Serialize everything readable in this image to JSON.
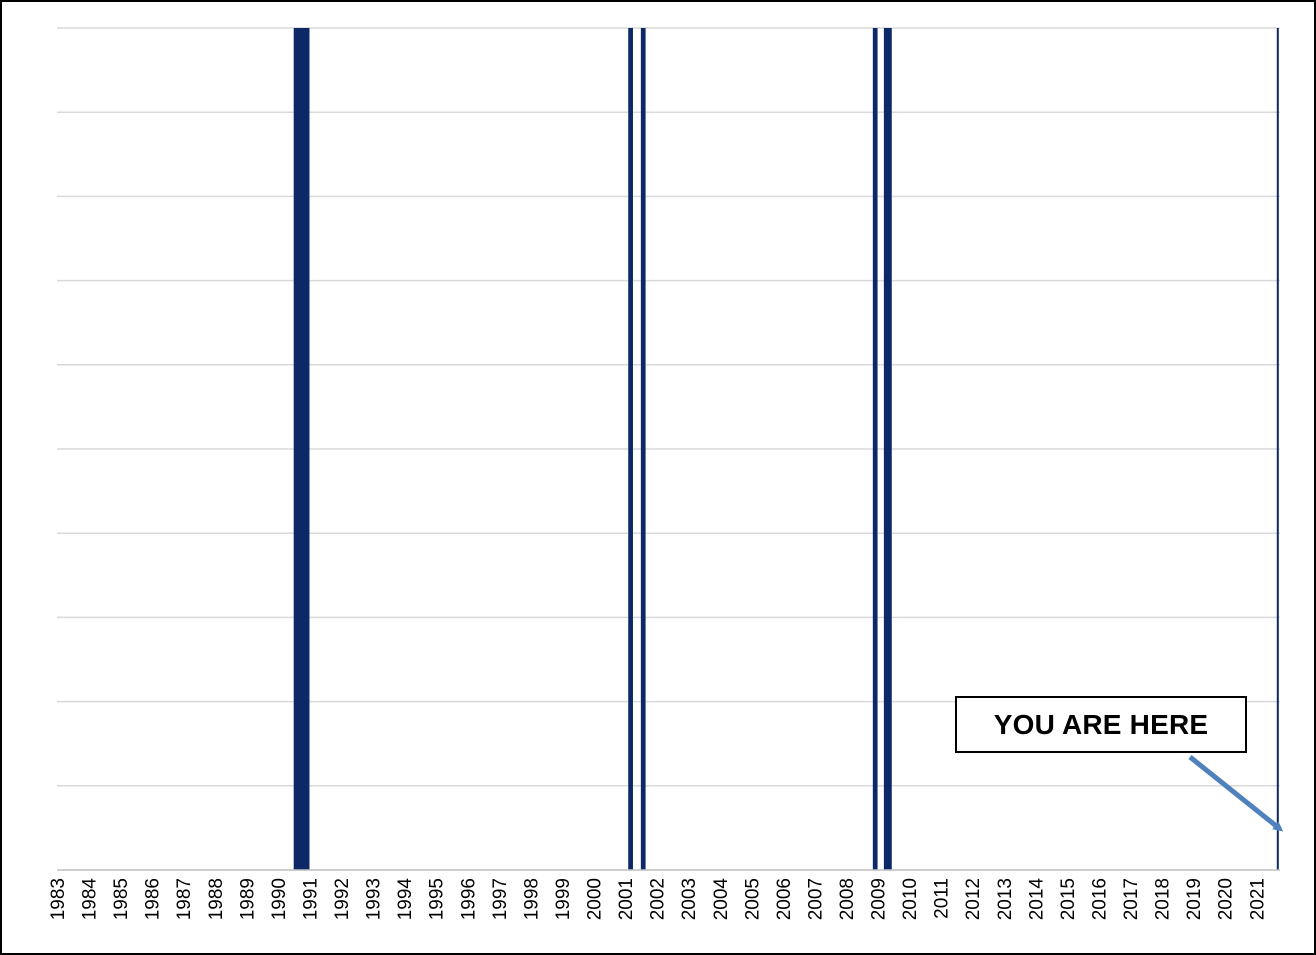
{
  "chart_data": {
    "type": "bar",
    "title": "",
    "xlabel": "",
    "ylabel": "",
    "x_tick_labels": [
      "1983",
      "1984",
      "1985",
      "1986",
      "1987",
      "1988",
      "1989",
      "1990",
      "1991",
      "1992",
      "1993",
      "1994",
      "1995",
      "1996",
      "1997",
      "1998",
      "1999",
      "2000",
      "2001",
      "2002",
      "2003",
      "2004",
      "2005",
      "2006",
      "2007",
      "2008",
      "2009",
      "2010",
      "2011",
      "2012",
      "2013",
      "2014",
      "2015",
      "2016",
      "2017",
      "2018",
      "2019",
      "2020",
      "2021"
    ],
    "x_range": [
      1983,
      2021.75
    ],
    "ylim": [
      0,
      1
    ],
    "y_gridlines": 10,
    "grid": true,
    "legend": "none",
    "bar_color": "#0d2866",
    "gridline_color": "#d9d9d9",
    "annotation_color": "#4f81bd",
    "series": [
      {
        "periods": [
          {
            "start": 1990.5,
            "end": 1991.0
          },
          {
            "start": 2001.1,
            "end": 2001.25
          },
          {
            "start": 2001.5,
            "end": 2001.65
          },
          {
            "start": 2008.85,
            "end": 2009.0
          },
          {
            "start": 2009.2,
            "end": 2009.45
          },
          {
            "start": 2021.65,
            "end": 2021.7
          }
        ],
        "value": 1
      }
    ],
    "annotations": [
      {
        "text": "YOU ARE HERE",
        "points_to_year": 2021.65
      }
    ]
  }
}
